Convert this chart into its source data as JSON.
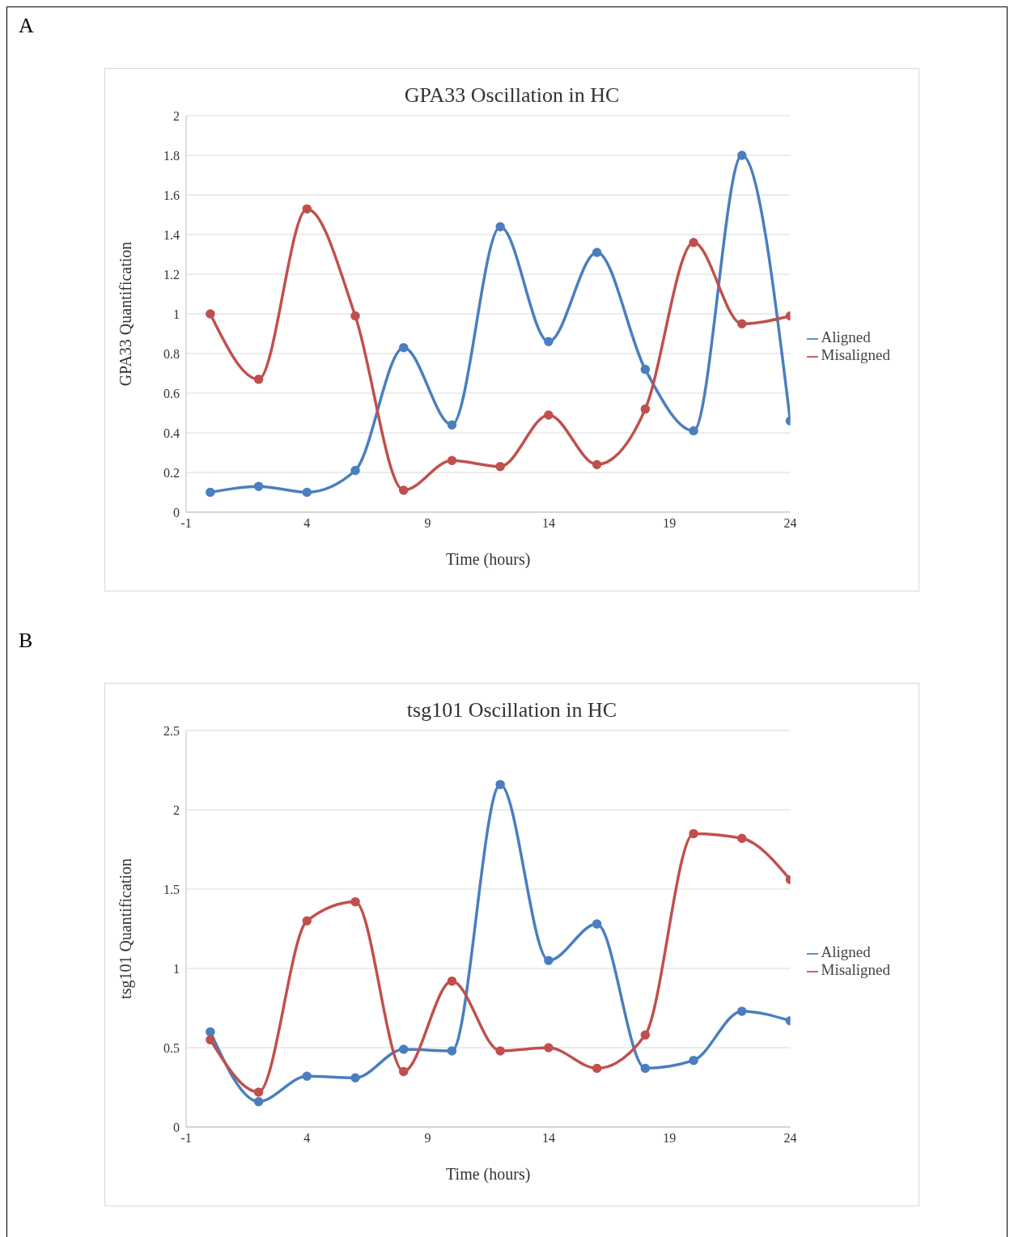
{
  "chart_data": [
    {
      "type": "line",
      "title": "GPA33 Oscillation in HC",
      "xlabel": "Time (hours)",
      "ylabel": "GPA33 Quantification",
      "annotations": [
        "A"
      ],
      "x": [
        0,
        2,
        4,
        6,
        8,
        10,
        12,
        14,
        16,
        18,
        20,
        22,
        24
      ],
      "series": [
        {
          "name": "Aligned",
          "color": "#4a7ebf",
          "values": [
            0.1,
            0.13,
            0.1,
            0.21,
            0.83,
            0.44,
            1.44,
            0.86,
            1.31,
            0.72,
            0.41,
            1.8,
            0.46
          ]
        },
        {
          "name": "Misaligned",
          "color": "#c0504d",
          "values": [
            1.0,
            0.67,
            1.53,
            0.99,
            0.11,
            0.26,
            0.23,
            0.49,
            0.24,
            0.52,
            1.36,
            0.95,
            0.99
          ]
        }
      ],
      "xlim": [
        -1,
        24
      ],
      "xticks": [
        -1,
        4,
        9,
        14,
        19,
        24
      ],
      "ylim": [
        0,
        2
      ],
      "yticks": [
        0,
        0.2,
        0.4,
        0.6,
        0.8,
        1,
        1.2,
        1.4,
        1.6,
        1.8,
        2
      ],
      "grid": "y",
      "legend": "right",
      "marker": "circle",
      "line_style": "solid"
    },
    {
      "type": "line",
      "title": "tsg101 Oscillation in HC",
      "xlabel": "Time (hours)",
      "ylabel": "tsg101 Quantification",
      "annotations": [
        "B"
      ],
      "x": [
        0,
        2,
        4,
        6,
        8,
        10,
        12,
        14,
        16,
        18,
        20,
        22,
        24
      ],
      "series": [
        {
          "name": "Aligned",
          "color": "#4a7ebf",
          "values": [
            0.6,
            0.16,
            0.32,
            0.31,
            0.49,
            0.48,
            2.16,
            1.05,
            1.28,
            0.37,
            0.42,
            0.73,
            0.67
          ]
        },
        {
          "name": "Misaligned",
          "color": "#c0504d",
          "values": [
            0.55,
            0.22,
            1.3,
            1.42,
            0.35,
            0.92,
            0.48,
            0.5,
            0.37,
            0.58,
            1.85,
            1.82,
            1.56
          ]
        }
      ],
      "xlim": [
        -1,
        24
      ],
      "xticks": [
        -1,
        4,
        9,
        14,
        19,
        24
      ],
      "ylim": [
        0,
        2.5
      ],
      "yticks": [
        0,
        0.5,
        1,
        1.5,
        2,
        2.5
      ],
      "grid": "y",
      "legend": "right",
      "marker": "circle",
      "line_style": "solid"
    }
  ]
}
